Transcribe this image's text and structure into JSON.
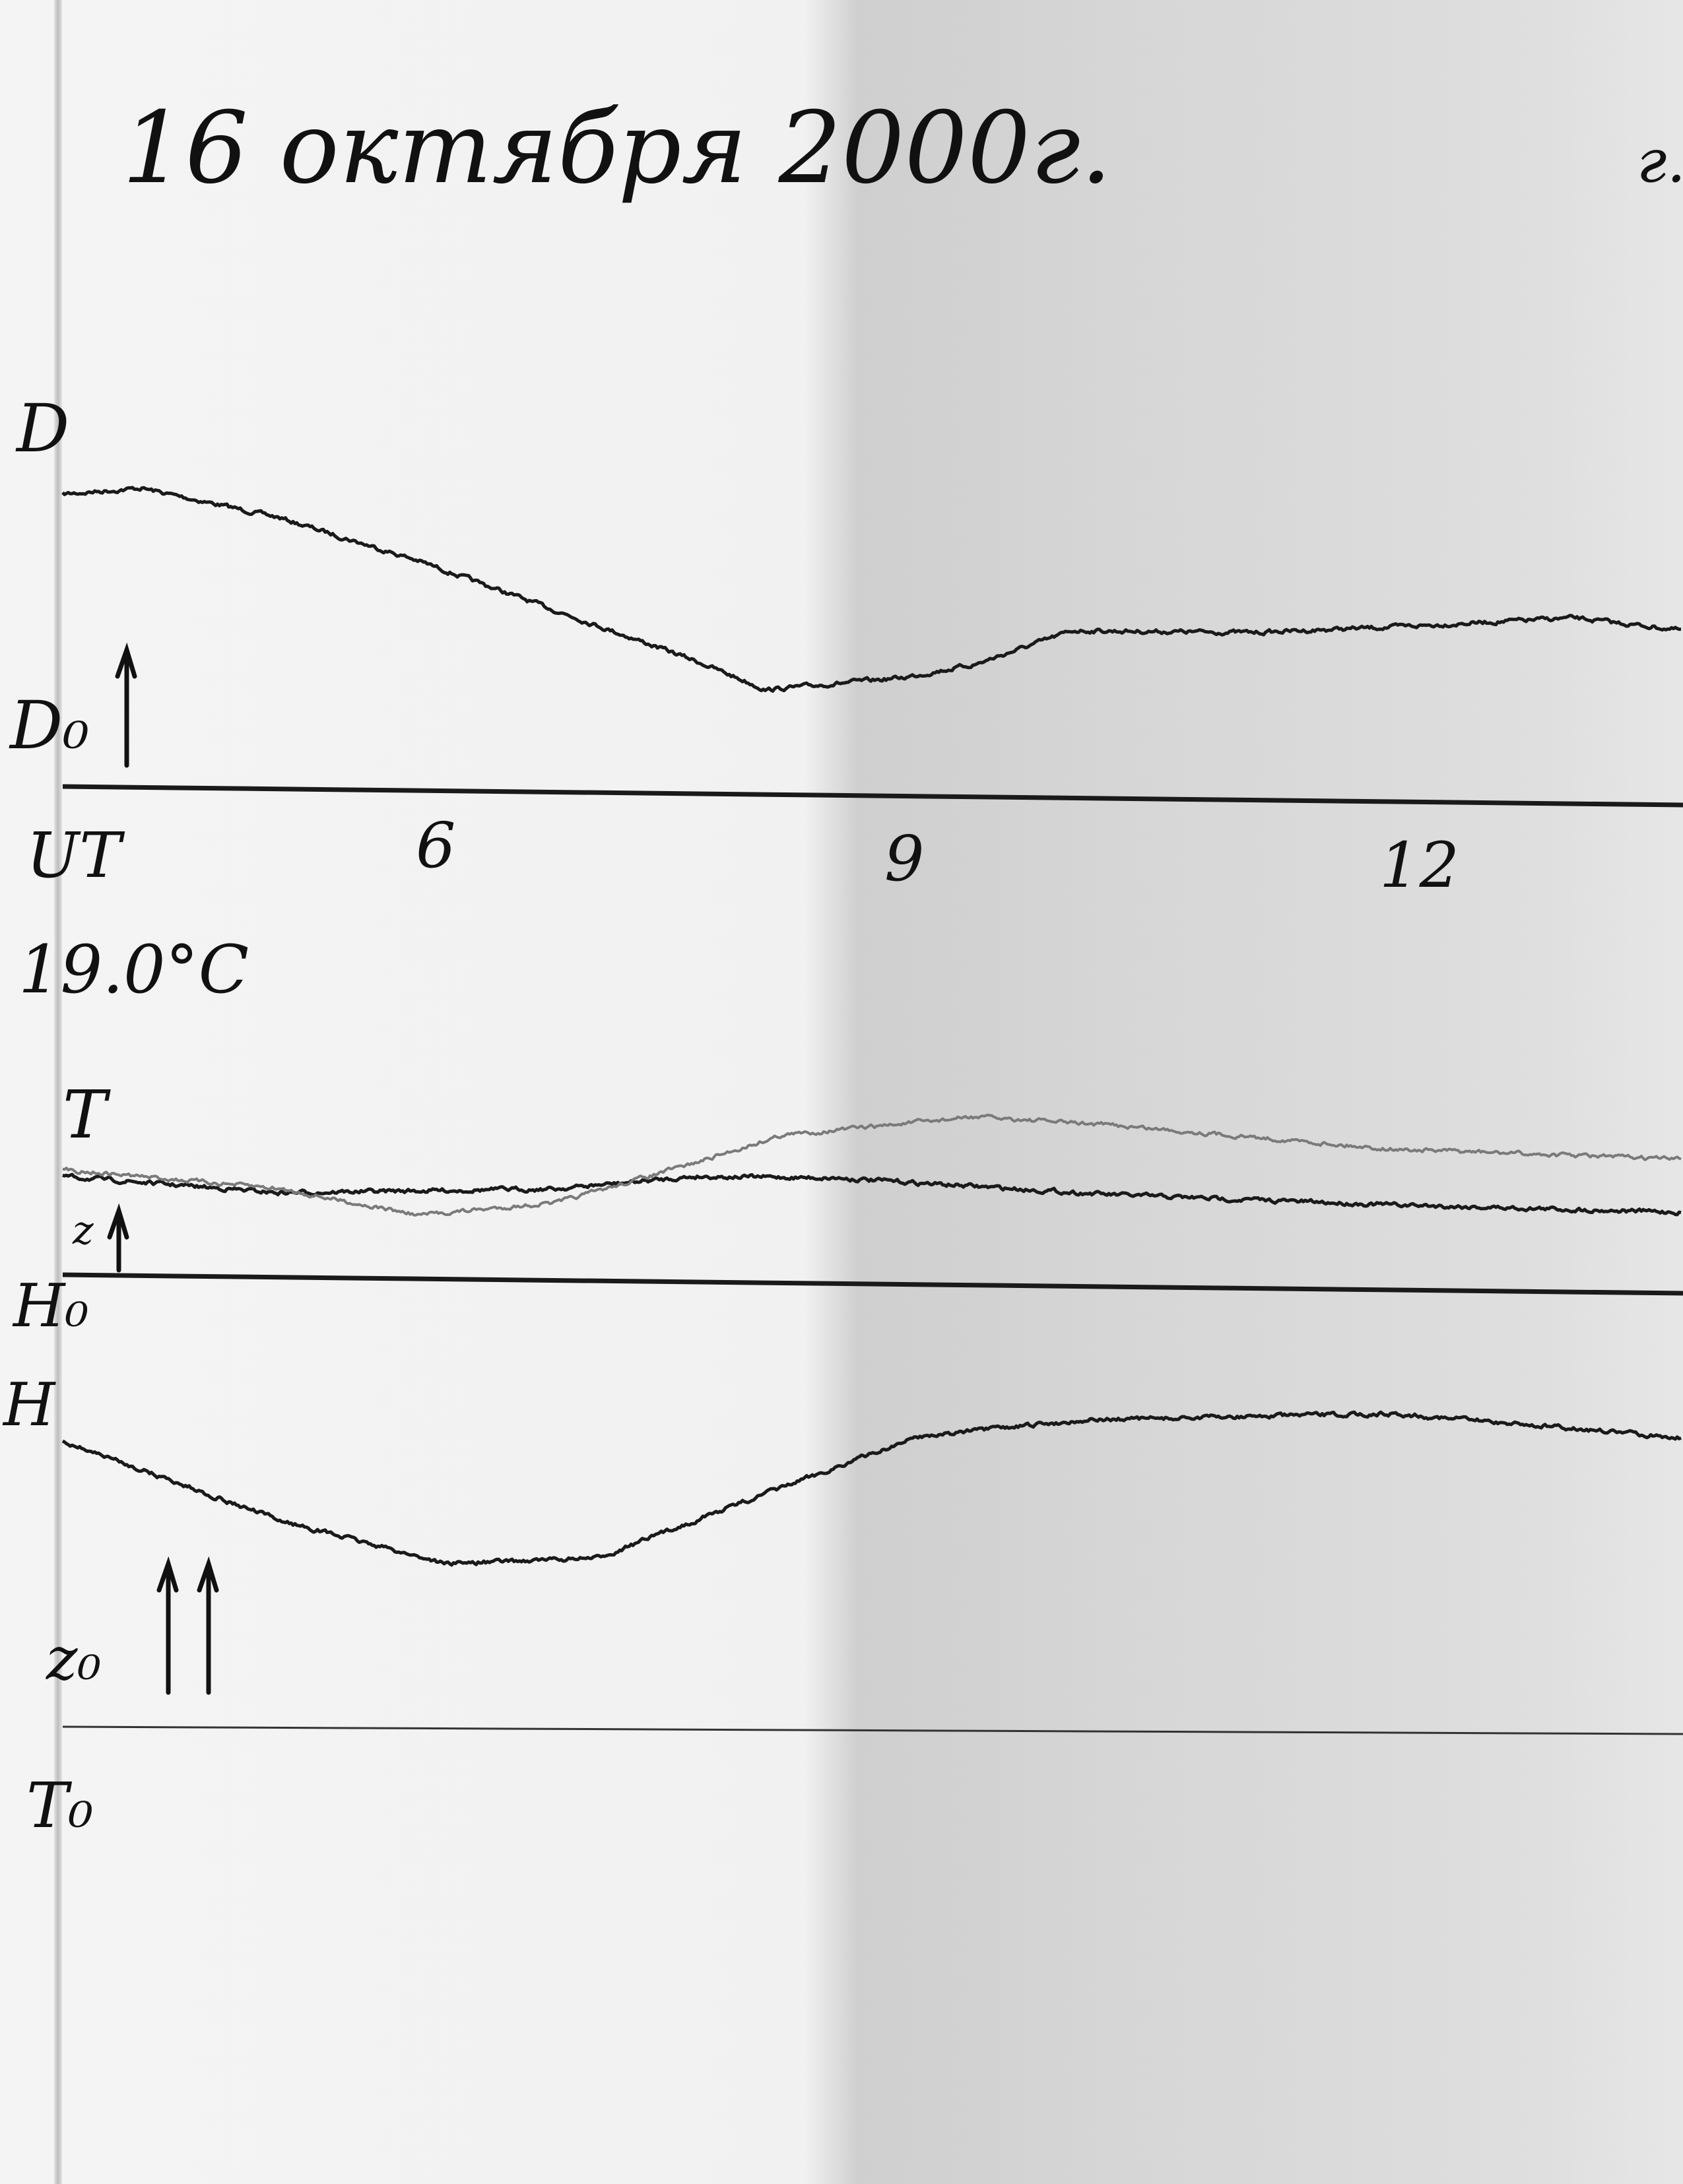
{
  "header": {
    "title": "16 октября 2000г.",
    "corner_mark": "г."
  },
  "labels": {
    "D": "D",
    "D0": "D₀",
    "UT": "UT",
    "temperature": "19.0°C",
    "T": "T",
    "z": "z",
    "H0": "H₀",
    "H": "H",
    "z0": "z₀",
    "T0": "T₀"
  },
  "colors": {
    "trace": "#1a1a1a",
    "trace_light": "#7a7a7a",
    "paper": "#f2f2f2",
    "shadow": "#d0d0d0"
  },
  "chart_data": {
    "type": "line",
    "title": "16 октября 2000г.",
    "xlabel": "UT",
    "x_ticks": [
      {
        "value": 6,
        "label": "6"
      },
      {
        "value": 9,
        "label": "9"
      },
      {
        "value": 12,
        "label": "12"
      }
    ],
    "xlim": [
      3.7,
      14
    ],
    "grid": false,
    "panels": [
      {
        "name": "D",
        "baseline_label": "D₀",
        "series": [
          {
            "name": "D",
            "style": "dark",
            "x": [
              3.7,
              4.2,
              5.07,
              5.96,
              6.84,
              7.73,
              8.17,
              9.05,
              9.5,
              10.12,
              11.27,
              12.15,
              13.3,
              13.99
            ],
            "y": [
              215,
              220,
              200,
              170,
              135,
              100,
              80,
              90,
              100,
              125,
              125,
              130,
              138,
              130
            ]
          }
        ]
      },
      {
        "name": "T / z",
        "baseline_label": "H₀",
        "annotation": "19.0°C",
        "series": [
          {
            "name": "T",
            "style": "dark",
            "x": [
              3.7,
              5.07,
              6.84,
              7.73,
              8.61,
              9.5,
              10.38,
              12.15,
              13.99
            ],
            "y": [
              75,
              65,
              70,
              80,
              80,
              75,
              70,
              65,
              62
            ]
          },
          {
            "name": "z",
            "style": "light",
            "x": [
              3.7,
              5.07,
              5.96,
              6.84,
              7.73,
              8.26,
              9.5,
              10.38,
              12.15,
              13.99
            ],
            "y": [
              80,
              68,
              50,
              60,
              90,
              110,
              125,
              120,
              105,
              100
            ]
          }
        ]
      },
      {
        "name": "H",
        "baseline_label": "H₀",
        "series": [
          {
            "name": "H",
            "style": "dark",
            "x": [
              3.7,
              4.2,
              5.07,
              6.13,
              7.1,
              7.99,
              9.14,
              10.2,
              11.27,
              12.15,
              13.04,
              13.99
            ],
            "y": [
              -115,
              -135,
              -170,
              -200,
              -195,
              -155,
              -105,
              -92,
              -88,
              -85,
              -92,
              -100
            ]
          }
        ]
      }
    ]
  }
}
